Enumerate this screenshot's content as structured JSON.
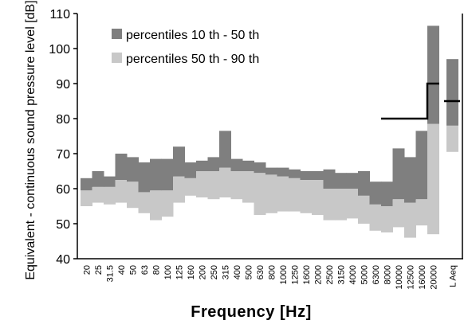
{
  "colors": {
    "dark": "#7f7f7f",
    "light": "#c8c8c8",
    "axis": "#000000",
    "step": "#000000"
  },
  "chart_data": {
    "type": "bar",
    "title": "",
    "xlabel": "Frequency [Hz]",
    "ylabel": "Equivalent - continuous sound pressure level  [dB]",
    "ylim": [
      40,
      110
    ],
    "yticks": [
      "40",
      "50",
      "60",
      "70",
      "80",
      "90",
      "100",
      "110"
    ],
    "categories": [
      "20",
      "25",
      "31.5",
      "40",
      "50",
      "63",
      "80",
      "100",
      "125",
      "160",
      "200",
      "250",
      "315",
      "400",
      "500",
      "630",
      "800",
      "1000",
      "1250",
      "1600",
      "2000",
      "2500",
      "3150",
      "4000",
      "5000",
      "6300",
      "8000",
      "10000",
      "12500",
      "16000",
      "20000"
    ],
    "extra_category": "L Aeq",
    "legend": {
      "position": "top-left",
      "entries": [
        "percentiles  10 th - 50 th",
        "percentiles  50 th - 90 th"
      ]
    },
    "series": [
      {
        "name": "percentiles  10 th - 50 th",
        "lower": [
          59.5,
          60.5,
          60.5,
          62.5,
          62,
          59,
          59.5,
          59.5,
          63.5,
          63,
          65,
          65,
          66,
          65,
          65,
          64.5,
          64,
          63.5,
          63,
          62.5,
          62.5,
          60,
          60,
          60,
          58,
          55.5,
          55,
          57,
          56,
          57,
          78.5
        ],
        "upper": [
          63,
          65,
          63.5,
          70,
          69,
          67.5,
          68.5,
          68.5,
          72,
          67.5,
          68,
          69,
          76.5,
          68.5,
          68,
          67.5,
          66,
          66,
          65.5,
          65,
          65,
          65.5,
          64.5,
          64.5,
          65,
          62,
          62,
          71.5,
          69,
          76.5,
          106.5
        ]
      },
      {
        "name": "percentiles  50 th - 90 th",
        "lower": [
          55,
          56,
          55.5,
          56,
          54.5,
          53,
          51,
          52,
          56,
          58,
          57.5,
          57,
          57.5,
          57,
          56,
          52.5,
          53,
          53.5,
          53.5,
          53,
          52.5,
          51,
          51,
          51.5,
          50,
          48,
          47.5,
          49,
          46,
          49.5,
          47
        ],
        "upper": [
          59.5,
          60.5,
          60.5,
          62.5,
          62,
          59,
          59.5,
          59.5,
          63.5,
          63,
          65,
          65,
          66,
          65,
          65,
          64.5,
          64,
          63.5,
          63,
          62.5,
          62.5,
          60,
          60,
          60,
          58,
          55.5,
          55,
          57,
          56,
          57,
          78.5
        ]
      }
    ],
    "laeq": {
      "dark": [
        78,
        97
      ],
      "light": [
        70.5,
        78
      ],
      "line": 85
    },
    "criterion_step": {
      "x_from": "8000",
      "x_step": "20000",
      "level_low": 80,
      "level_high": 90
    }
  }
}
